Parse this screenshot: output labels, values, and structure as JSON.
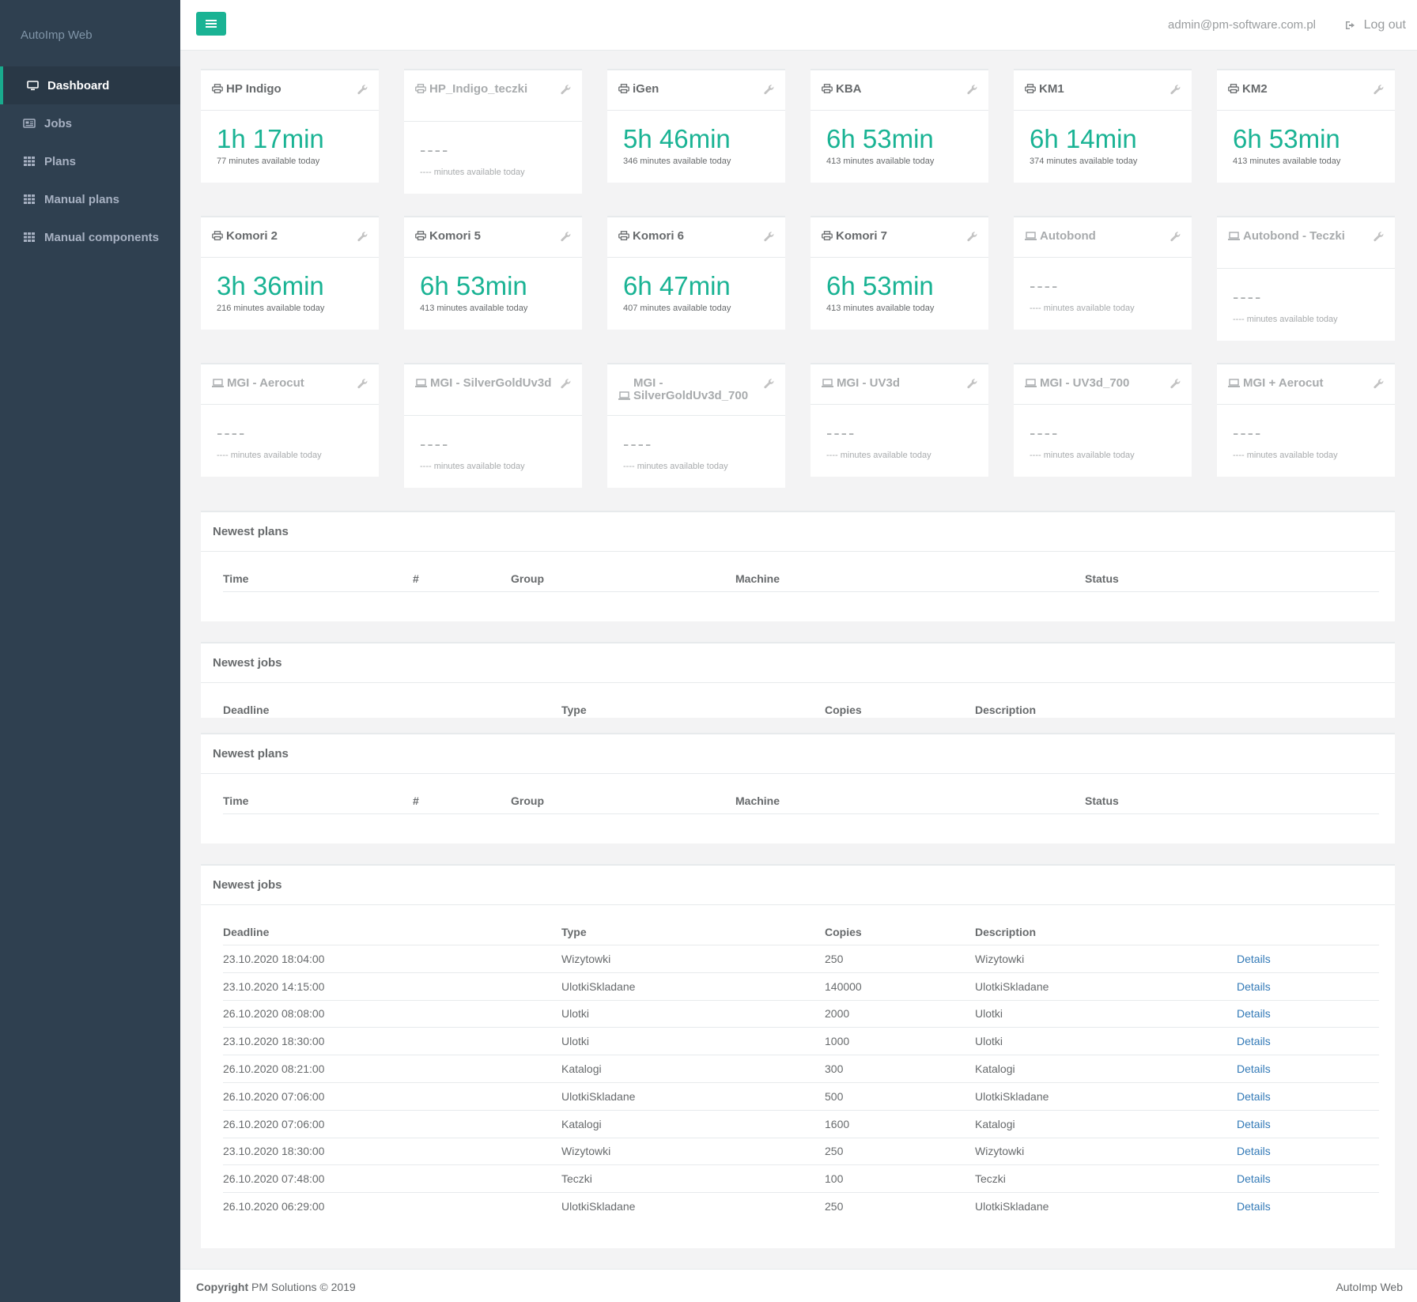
{
  "app": {
    "brand": "AutoImp Web"
  },
  "sidebar": {
    "items": [
      {
        "label": "Dashboard",
        "icon": "desktop-icon",
        "active": true
      },
      {
        "label": "Jobs",
        "icon": "newspaper-icon"
      },
      {
        "label": "Plans",
        "icon": "grid-icon"
      },
      {
        "label": "Manual plans",
        "icon": "grid-icon"
      },
      {
        "label": "Manual components",
        "icon": "grid-icon"
      }
    ]
  },
  "topbar": {
    "email": "admin@pm-software.com.pl",
    "logout": "Log out"
  },
  "colors": {
    "accent": "#1ab394",
    "sidebar": "#2f4050",
    "link": "#337ab7"
  },
  "machines": [
    {
      "name": "HP Indigo",
      "icon": "printer-icon",
      "time": "1h 17min",
      "note": "77 minutes available today",
      "disabled": false
    },
    {
      "name": "HP_Indigo_teczki",
      "icon": "printer-icon",
      "time": "----",
      "note": "---- minutes available today",
      "disabled": true
    },
    {
      "name": "iGen",
      "icon": "printer-icon",
      "time": "5h 46min",
      "note": "346 minutes available today",
      "disabled": false
    },
    {
      "name": "KBA",
      "icon": "printer-icon",
      "time": "6h 53min",
      "note": "413 minutes available today",
      "disabled": false
    },
    {
      "name": "KM1",
      "icon": "printer-icon",
      "time": "6h 14min",
      "note": "374 minutes available today",
      "disabled": false
    },
    {
      "name": "KM2",
      "icon": "printer-icon",
      "time": "6h 53min",
      "note": "413 minutes available today",
      "disabled": false
    },
    {
      "name": "Komori 2",
      "icon": "printer-icon",
      "time": "3h 36min",
      "note": "216 minutes available today",
      "disabled": false
    },
    {
      "name": "Komori 5",
      "icon": "printer-icon",
      "time": "6h 53min",
      "note": "413 minutes available today",
      "disabled": false
    },
    {
      "name": "Komori 6",
      "icon": "printer-icon",
      "time": "6h 47min",
      "note": "407 minutes available today",
      "disabled": false
    },
    {
      "name": "Komori 7",
      "icon": "printer-icon",
      "time": "6h 53min",
      "note": "413 minutes available today",
      "disabled": false
    },
    {
      "name": "Autobond",
      "icon": "laptop-icon",
      "time": "----",
      "note": "---- minutes available today",
      "disabled": true
    },
    {
      "name": "Autobond - Teczki",
      "icon": "laptop-icon",
      "time": "----",
      "note": "---- minutes available today",
      "disabled": true
    },
    {
      "name": "MGI - Aerocut",
      "icon": "laptop-icon",
      "time": "----",
      "note": "---- minutes available today",
      "disabled": true
    },
    {
      "name": "MGI - SilverGoldUv3d",
      "icon": "laptop-icon",
      "time": "----",
      "note": "---- minutes available today",
      "disabled": true
    },
    {
      "name": "MGI - SilverGoldUv3d_700",
      "icon": "laptop-icon",
      "time": "----",
      "note": "---- minutes available today",
      "disabled": true
    },
    {
      "name": "MGI - UV3d",
      "icon": "laptop-icon",
      "time": "----",
      "note": "---- minutes available today",
      "disabled": true
    },
    {
      "name": "MGI - UV3d_700",
      "icon": "laptop-icon",
      "time": "----",
      "note": "---- minutes available today",
      "disabled": true
    },
    {
      "name": "MGI + Aerocut",
      "icon": "laptop-icon",
      "time": "----",
      "note": "---- minutes available today",
      "disabled": true
    }
  ],
  "panels": {
    "plans1": {
      "title": "Newest plans",
      "headers": [
        "Time",
        "#",
        "Group",
        "Machine",
        "Status"
      ]
    },
    "jobs1": {
      "title": "Newest jobs",
      "headers": [
        "Deadline",
        "Type",
        "Copies",
        "Description"
      ]
    },
    "plans2": {
      "title": "Newest plans",
      "headers": [
        "Time",
        "#",
        "Group",
        "Machine",
        "Status"
      ]
    },
    "jobs2": {
      "title": "Newest jobs",
      "headers": [
        "Deadline",
        "Type",
        "Copies",
        "Description"
      ],
      "link_label": "Details",
      "rows": [
        [
          "23.10.2020 18:04:00",
          "Wizytowki",
          "250",
          "Wizytowki"
        ],
        [
          "23.10.2020 14:15:00",
          "UlotkiSkladane",
          "140000",
          "UlotkiSkladane"
        ],
        [
          "26.10.2020 08:08:00",
          "Ulotki",
          "2000",
          "Ulotki"
        ],
        [
          "23.10.2020 18:30:00",
          "Ulotki",
          "1000",
          "Ulotki"
        ],
        [
          "26.10.2020 08:21:00",
          "Katalogi",
          "300",
          "Katalogi"
        ],
        [
          "26.10.2020 07:06:00",
          "UlotkiSkladane",
          "500",
          "UlotkiSkladane"
        ],
        [
          "26.10.2020 07:06:00",
          "Katalogi",
          "1600",
          "Katalogi"
        ],
        [
          "23.10.2020 18:30:00",
          "Wizytowki",
          "250",
          "Wizytowki"
        ],
        [
          "26.10.2020 07:48:00",
          "Teczki",
          "100",
          "Teczki"
        ],
        [
          "26.10.2020 06:29:00",
          "UlotkiSkladane",
          "250",
          "UlotkiSkladane"
        ]
      ]
    }
  },
  "footer": {
    "copyright_strong": "Copyright",
    "copyright_rest": " PM Solutions © 2019",
    "right": "AutoImp Web"
  }
}
